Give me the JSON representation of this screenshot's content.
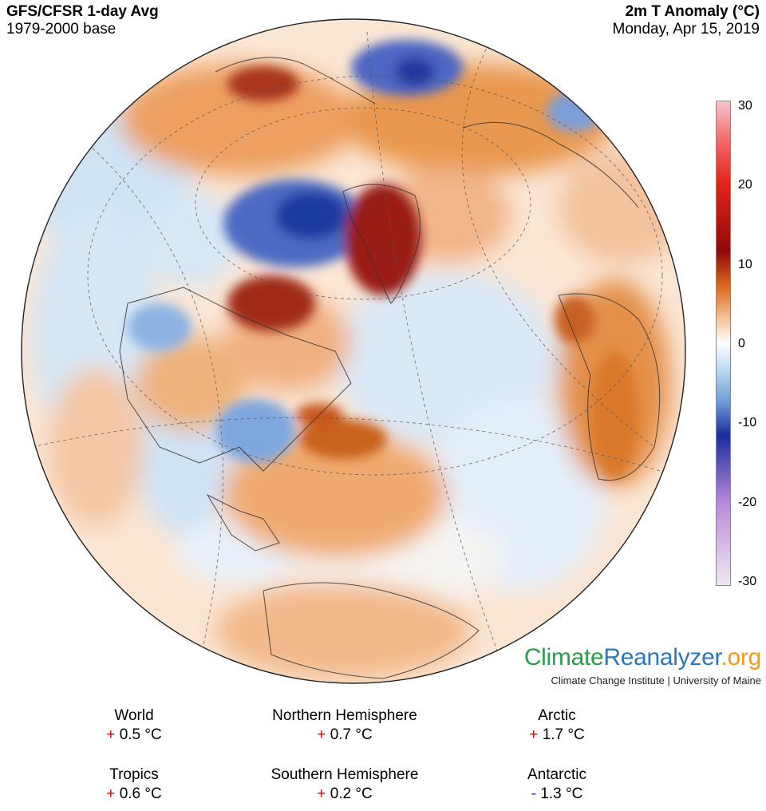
{
  "header": {
    "title": "GFS/CFSR 1-day Avg",
    "base": "1979-2000 base",
    "variable": "2m T Anomaly (°C)",
    "date": "Monday, Apr 15, 2019"
  },
  "colorbar": {
    "ticks": [
      "30",
      "20",
      "10",
      "0",
      "-10",
      "-20",
      "-30"
    ],
    "min": -30,
    "max": 30,
    "colors": {
      "plus30": "#f4c6cc",
      "plus20": "#e4231b",
      "plus10": "#8e0b0b",
      "plus5": "#d9661c",
      "plus2": "#f5c59a",
      "zero": "#ffffff",
      "minus2": "#c3dcf2",
      "minus5": "#6f9fd8",
      "minus10": "#1a2d9a",
      "minus20": "#b88ad9",
      "minus30": "#f0e8f2"
    }
  },
  "logo": {
    "part1": "Climate",
    "part2": "Reanalyzer",
    "part3": ".org",
    "subtitle": "Climate Change Institute | University of Maine"
  },
  "stats": [
    {
      "label": "World",
      "sign": "+",
      "value": "0.5 °C"
    },
    {
      "label": "Northern Hemisphere",
      "sign": "+",
      "value": "0.7 °C"
    },
    {
      "label": "Arctic",
      "sign": "+",
      "value": "1.7 °C"
    },
    {
      "label": "Tropics",
      "sign": "+",
      "value": "0.6 °C"
    },
    {
      "label": "Southern Hemisphere",
      "sign": "+",
      "value": "0.2 °C"
    },
    {
      "label": "Antarctic",
      "sign": "-",
      "value": "1.3 °C"
    }
  ]
}
